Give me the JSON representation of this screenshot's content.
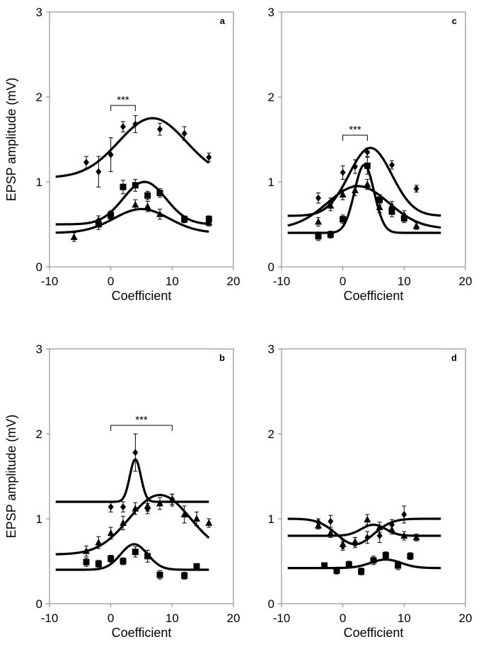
{
  "figure": {
    "y_axis_title": "EPSP amplitude (mV)",
    "x_axis_title": "Coefficient"
  },
  "chart_data": [
    {
      "type": "scatter",
      "panel": "a",
      "xlabel": "Coefficient",
      "ylabel": "EPSP amplitude (mV)",
      "xlim": [
        -10,
        20
      ],
      "ylim": [
        0,
        3
      ],
      "xticks": [
        -10,
        0,
        10,
        20
      ],
      "yticks": [
        0,
        1,
        2,
        3
      ],
      "significance": {
        "label": "***",
        "x_from": 0,
        "x_to": 4,
        "y": 1.9
      },
      "series": [
        {
          "name": "diamond",
          "marker": "diamond",
          "points": [
            [
              -4,
              1.23,
              0.07
            ],
            [
              -2,
              1.12,
              0.18
            ],
            [
              0,
              1.32,
              0.2
            ],
            [
              2,
              1.65,
              0.06
            ],
            [
              4,
              1.68,
              0.1
            ],
            [
              8,
              1.62,
              0.07
            ],
            [
              12,
              1.57,
              0.08
            ],
            [
              16,
              1.29,
              0.05
            ]
          ],
          "fit": {
            "base": 1.05,
            "amp": 0.7,
            "mu": 6.8,
            "sigma": 5.5
          }
        },
        {
          "name": "square",
          "marker": "square",
          "points": [
            [
              -2,
              0.5,
              0.06
            ],
            [
              0,
              0.61,
              0.05
            ],
            [
              2,
              0.94,
              0.08
            ],
            [
              4,
              0.96,
              0.07
            ],
            [
              6,
              0.84,
              0.05
            ],
            [
              8,
              0.87,
              0.05
            ],
            [
              12,
              0.56,
              0.04
            ],
            [
              16,
              0.56,
              0.04
            ]
          ],
          "fit": {
            "base": 0.5,
            "amp": 0.5,
            "mu": 5.5,
            "sigma": 3.5
          }
        },
        {
          "name": "triangle",
          "marker": "triangle",
          "points": [
            [
              -6,
              0.35,
              0.05
            ],
            [
              -2,
              0.55,
              0.05
            ],
            [
              0,
              0.6,
              0.05
            ],
            [
              4,
              0.73,
              0.06
            ],
            [
              6,
              0.71,
              0.06
            ],
            [
              8,
              0.62,
              0.06
            ],
            [
              12,
              0.56,
              0.04
            ],
            [
              16,
              0.52,
              0.04
            ]
          ],
          "fit": {
            "base": 0.4,
            "amp": 0.28,
            "mu": 5.0,
            "sigma": 4.5
          }
        }
      ]
    },
    {
      "type": "scatter",
      "panel": "b",
      "xlabel": "Coefficient",
      "ylabel": "EPSP amplitude (mV)",
      "xlim": [
        -10,
        20
      ],
      "ylim": [
        0,
        3
      ],
      "xticks": [
        -10,
        0,
        10,
        20
      ],
      "yticks": [
        0,
        1,
        2,
        3
      ],
      "significance": {
        "label": "***",
        "x_from": 0,
        "x_to": 10,
        "y": 2.1
      },
      "series": [
        {
          "name": "diamond",
          "marker": "diamond",
          "points": [
            [
              0,
              1.14,
              0.06
            ],
            [
              2,
              1.14,
              0.06
            ],
            [
              4,
              1.78,
              0.22
            ],
            [
              6,
              1.12,
              0.06
            ],
            [
              10,
              1.23,
              0.06
            ]
          ],
          "fit": {
            "base": 1.2,
            "amp": 0.5,
            "mu": 4.0,
            "sigma": 0.9
          }
        },
        {
          "name": "triangle",
          "marker": "triangle",
          "points": [
            [
              -4,
              0.62,
              0.06
            ],
            [
              -2,
              0.72,
              0.07
            ],
            [
              0,
              0.83,
              0.07
            ],
            [
              2,
              0.95,
              0.08
            ],
            [
              4,
              1.12,
              0.07
            ],
            [
              6,
              1.15,
              0.06
            ],
            [
              8,
              1.18,
              0.07
            ],
            [
              10,
              1.22,
              0.07
            ],
            [
              12,
              1.05,
              0.1
            ],
            [
              14,
              1.0,
              0.08
            ],
            [
              16,
              0.95,
              0.05
            ]
          ],
          "fit": {
            "base": 0.58,
            "amp": 0.7,
            "mu": 8.0,
            "sigma": 5.0
          }
        },
        {
          "name": "square",
          "marker": "square",
          "points": [
            [
              -4,
              0.49,
              0.05
            ],
            [
              -2,
              0.47,
              0.04
            ],
            [
              0,
              0.53,
              0.04
            ],
            [
              2,
              0.5,
              0.04
            ],
            [
              4,
              0.61,
              0.06
            ],
            [
              6,
              0.56,
              0.07
            ],
            [
              8,
              0.34,
              0.05
            ],
            [
              12,
              0.33,
              0.04
            ],
            [
              14,
              0.44,
              0.03
            ]
          ],
          "fit": {
            "base": 0.4,
            "amp": 0.3,
            "mu": 3.8,
            "sigma": 2.2
          }
        }
      ]
    },
    {
      "type": "scatter",
      "panel": "c",
      "xlabel": "Coefficient",
      "ylabel": "",
      "xlim": [
        -10,
        20
      ],
      "ylim": [
        0,
        3
      ],
      "xticks": [
        -10,
        0,
        10,
        20
      ],
      "yticks": [
        0,
        1,
        2,
        3
      ],
      "significance": {
        "label": "***",
        "x_from": 0,
        "x_to": 4,
        "y": 1.55
      },
      "series": [
        {
          "name": "diamond",
          "marker": "diamond",
          "points": [
            [
              -4,
              0.81,
              0.06
            ],
            [
              -2,
              0.75,
              0.06
            ],
            [
              0,
              1.11,
              0.08
            ],
            [
              2,
              1.18,
              0.08
            ],
            [
              4,
              1.35,
              0.05
            ],
            [
              6,
              0.8,
              0.05
            ],
            [
              8,
              1.2,
              0.05
            ],
            [
              12,
              0.92,
              0.04
            ]
          ],
          "fit": {
            "base": 0.6,
            "amp": 0.8,
            "mu": 4.5,
            "sigma": 3.5
          }
        },
        {
          "name": "triangle",
          "marker": "triangle",
          "points": [
            [
              -4,
              0.53,
              0.05
            ],
            [
              -2,
              0.72,
              0.06
            ],
            [
              0,
              0.85,
              0.06
            ],
            [
              2,
              0.9,
              0.06
            ],
            [
              4,
              0.97,
              0.06
            ],
            [
              6,
              0.7,
              0.06
            ],
            [
              8,
              0.72,
              0.05
            ],
            [
              10,
              0.61,
              0.05
            ],
            [
              12,
              0.48,
              0.04
            ]
          ],
          "fit": {
            "base": 0.45,
            "amp": 0.5,
            "mu": 2.5,
            "sigma": 5.0
          }
        },
        {
          "name": "square",
          "marker": "square",
          "points": [
            [
              -4,
              0.36,
              0.05
            ],
            [
              -2,
              0.38,
              0.04
            ],
            [
              0,
              0.56,
              0.05
            ],
            [
              4,
              1.19,
              0.1
            ],
            [
              6,
              0.79,
              0.06
            ],
            [
              8,
              0.65,
              0.06
            ],
            [
              10,
              0.57,
              0.05
            ]
          ],
          "fit": {
            "base": 0.4,
            "amp": 0.8,
            "mu": 3.5,
            "sigma": 1.6
          }
        }
      ]
    },
    {
      "type": "scatter",
      "panel": "d",
      "xlabel": "Coefficient",
      "ylabel": "",
      "xlim": [
        -10,
        20
      ],
      "ylim": [
        0,
        3
      ],
      "xticks": [
        -10,
        0,
        10,
        20
      ],
      "yticks": [
        0,
        1,
        2,
        3
      ],
      "series": [
        {
          "name": "diamond",
          "marker": "diamond",
          "points": [
            [
              -4,
              0.96,
              0.04
            ],
            [
              -2,
              0.97,
              0.07
            ],
            [
              0,
              0.68,
              0.05
            ],
            [
              2,
              0.72,
              0.06
            ],
            [
              4,
              0.78,
              0.07
            ],
            [
              6,
              0.8,
              0.08
            ],
            [
              8,
              0.93,
              0.06
            ],
            [
              10,
              1.05,
              0.1
            ]
          ],
          "fit": {
            "base": 1.0,
            "amp": -0.3,
            "mu": 2.0,
            "sigma": 3.0
          }
        },
        {
          "name": "triangle",
          "marker": "triangle",
          "points": [
            [
              -4,
              0.92,
              0.04
            ],
            [
              -2,
              0.83,
              0.05
            ],
            [
              0,
              0.7,
              0.05
            ],
            [
              2,
              0.73,
              0.05
            ],
            [
              4,
              0.99,
              0.06
            ],
            [
              6,
              0.9,
              0.06
            ],
            [
              8,
              0.87,
              0.05
            ],
            [
              10,
              0.8,
              0.05
            ],
            [
              12,
              0.78,
              0.04
            ]
          ],
          "fit": {
            "base": 0.8,
            "amp": 0.13,
            "mu": 5.0,
            "sigma": 2.0
          }
        },
        {
          "name": "square",
          "marker": "square",
          "points": [
            [
              -3,
              0.45,
              0.03
            ],
            [
              -1,
              0.39,
              0.04
            ],
            [
              1,
              0.46,
              0.04
            ],
            [
              3,
              0.38,
              0.04
            ],
            [
              5,
              0.51,
              0.05
            ],
            [
              7,
              0.57,
              0.04
            ],
            [
              9,
              0.45,
              0.05
            ],
            [
              11,
              0.56,
              0.04
            ]
          ],
          "fit": {
            "base": 0.42,
            "amp": 0.1,
            "mu": 7.0,
            "sigma": 2.5
          }
        }
      ]
    }
  ]
}
